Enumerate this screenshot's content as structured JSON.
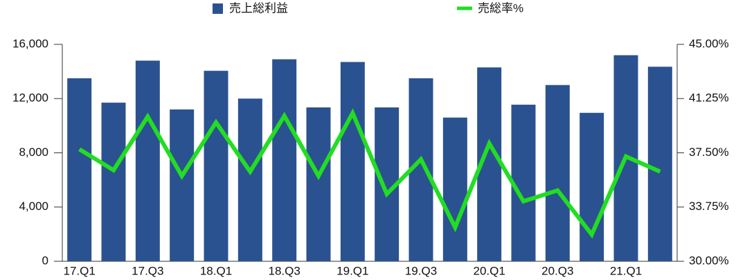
{
  "chart_data": {
    "type": "bar_line",
    "categories": [
      "17.Q1",
      null,
      "17.Q3",
      null,
      "18.Q1",
      null,
      "18.Q3",
      null,
      "19.Q1",
      null,
      "19.Q3",
      null,
      "20.Q1",
      null,
      "20.Q3",
      null,
      "21.Q1",
      null
    ],
    "series": [
      {
        "name": "売上総利益",
        "color": "#2b5290",
        "type": "bar",
        "values": [
          13500,
          11700,
          14800,
          11200,
          14050,
          12000,
          14900,
          11350,
          14700,
          11350,
          13500,
          10600,
          14300,
          11550,
          13000,
          10950,
          15200,
          14350
        ]
      },
      {
        "name": "売総率%",
        "color": "#22dd22",
        "type": "line",
        "axis": "y2",
        "values": [
          37.75,
          36.3,
          40.0,
          35.9,
          39.6,
          36.2,
          40.05,
          35.9,
          40.25,
          34.65,
          37.05,
          32.35,
          38.15,
          34.15,
          34.9,
          31.85,
          37.25,
          36.2
        ]
      }
    ],
    "ylim": [
      0,
      16000
    ],
    "yticks": [
      0,
      {
        "value": 4000,
        "label": "4,000"
      },
      {
        "value": 8000,
        "label": "8,000"
      },
      {
        "value": 12000,
        "label": "12,000"
      },
      {
        "value": 16000,
        "label": "16,000"
      }
    ],
    "y2lim": [
      30,
      45
    ],
    "y2ticks": [
      {
        "value": 30,
        "label": "30.00%"
      },
      {
        "value": 33.75,
        "label": "33.75%"
      },
      {
        "value": 37.5,
        "label": "37.50%"
      },
      {
        "value": 41.25,
        "label": "41.25%"
      },
      {
        "value": 45,
        "label": "45.00%"
      }
    ],
    "legend": "top"
  }
}
